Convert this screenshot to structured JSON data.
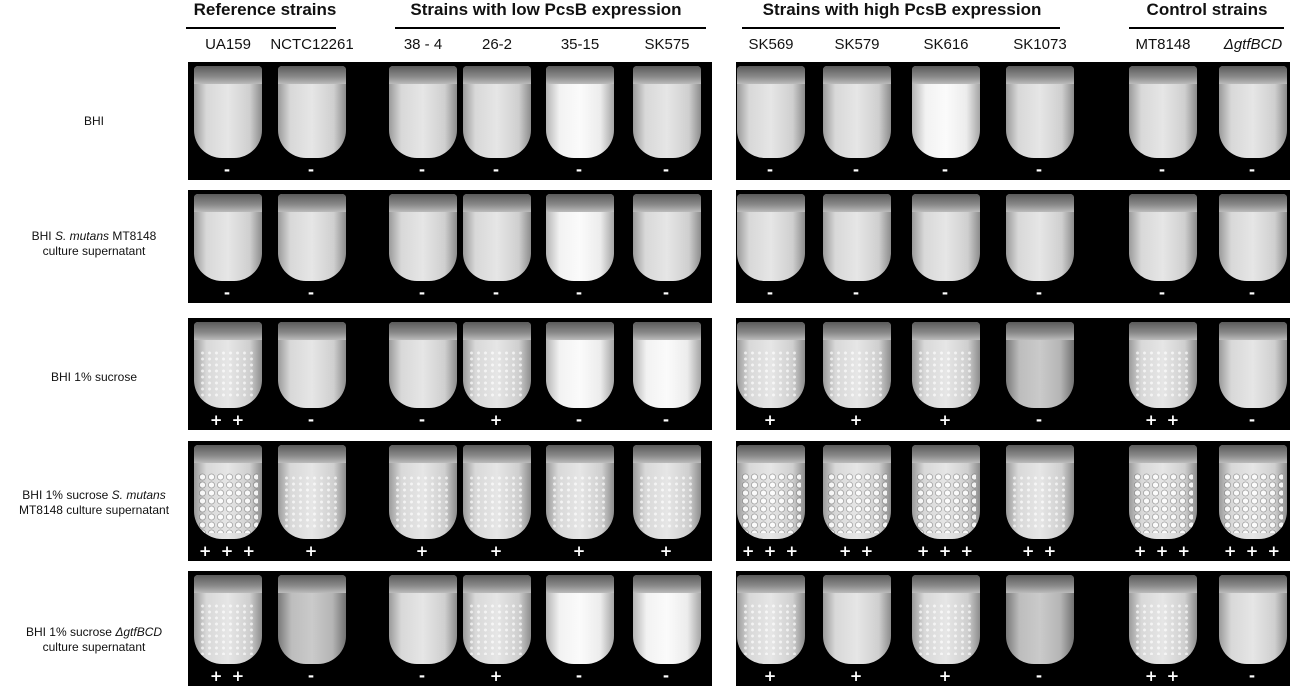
{
  "groups": [
    {
      "label": "Reference strains",
      "center": 265,
      "line": [
        186,
        336
      ]
    },
    {
      "label": "Strains with low PcsB expression",
      "center": 546,
      "line": [
        395,
        706
      ]
    },
    {
      "label": "Strains with high PcsB expression",
      "center": 902,
      "line": [
        742,
        1060
      ]
    },
    {
      "label": "Control strains",
      "center": 1207,
      "line": [
        1129,
        1284
      ]
    }
  ],
  "strains": [
    {
      "label": "UA159",
      "italic": false
    },
    {
      "label": "NCTC12261",
      "italic": false
    },
    {
      "label": "38 - 4",
      "italic": false
    },
    {
      "label": "26-2",
      "italic": false
    },
    {
      "label": "35-15",
      "italic": false
    },
    {
      "label": "SK575",
      "italic": false
    },
    {
      "label": "SK569",
      "italic": false
    },
    {
      "label": "SK579",
      "italic": false
    },
    {
      "label": "SK616",
      "italic": false
    },
    {
      "label": "SK1073",
      "italic": false
    },
    {
      "label": "MT8148",
      "italic": false
    },
    {
      "label": "ΔgtfBCD",
      "italic": true
    }
  ],
  "rows": [
    {
      "label_html": [
        "BHI"
      ],
      "scores": [
        "-",
        "-",
        "-",
        "-",
        "-",
        "-",
        "-",
        "-",
        "-",
        "-",
        "-",
        "-"
      ],
      "texture": [
        "plain",
        "plain",
        "plain",
        "plain",
        "bright",
        "plain",
        "plain",
        "plain",
        "bright",
        "plain",
        "plain",
        "plain"
      ]
    },
    {
      "label_html": [
        "BHI ",
        {
          "i": "S. mutans"
        },
        " MT8148",
        "\n",
        "culture supernatant"
      ],
      "scores": [
        "-",
        "-",
        "-",
        "-",
        "-",
        "-",
        "-",
        "-",
        "-",
        "-",
        "-",
        "-"
      ],
      "texture": [
        "plain",
        "plain",
        "plain",
        "plain",
        "bright",
        "plain",
        "plain",
        "plain",
        "plain",
        "plain",
        "plain",
        "plain"
      ]
    },
    {
      "label_html": [
        "BHI 1% sucrose"
      ],
      "scores": [
        "+ +",
        "-",
        "-",
        "+",
        "-",
        "-",
        "+",
        "+",
        "+",
        "-",
        "+ +",
        "-"
      ],
      "texture": [
        "grainy",
        "plain",
        "plain",
        "grainy",
        "bright",
        "bright",
        "grainy",
        "grainy",
        "grainy",
        "dim",
        "grainy",
        "plain"
      ]
    },
    {
      "label_html": [
        "BHI 1% sucrose  ",
        {
          "i": "S. mutans"
        },
        "\n",
        "MT8148  culture supernatant"
      ],
      "scores": [
        "+ + +",
        "+",
        "+",
        "+",
        "+",
        "+",
        "+ + +",
        "+ +",
        "+ + +",
        "+ +",
        "+ + +",
        "+ + +"
      ],
      "texture": [
        "clumpy",
        "grainy",
        "grainy",
        "grainy",
        "grainy",
        "grainy",
        "clumpy",
        "clumpy",
        "clumpy",
        "grainy",
        "clumpy",
        "clumpy"
      ]
    },
    {
      "label_html": [
        "BHI 1% sucrose ",
        {
          "i": "ΔgtfBCD"
        },
        "\n",
        "culture supernatant"
      ],
      "scores": [
        "+ +",
        "-",
        "-",
        "+",
        "-",
        "-",
        "+",
        "+",
        "+",
        "-",
        "+ +",
        "-"
      ],
      "texture": [
        "grainy",
        "dim",
        "plain",
        "grainy",
        "bright",
        "bright",
        "grainy",
        "plain",
        "grainy",
        "dim",
        "grainy",
        "plain"
      ]
    }
  ]
}
